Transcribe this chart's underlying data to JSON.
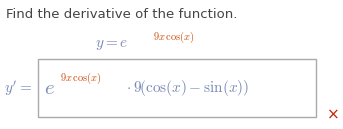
{
  "bg": "#ffffff",
  "title": "Find the derivative of the function.",
  "title_color": "#444444",
  "title_fontsize": 9.5,
  "math_color": "#7a8ab5",
  "exp_color": "#cc4400",
  "dark_color": "#555566",
  "box_edge_color": "#aaaaaa",
  "red_x_color": "#cc2200",
  "fig_w": 3.43,
  "fig_h": 1.29,
  "dpi": 100
}
